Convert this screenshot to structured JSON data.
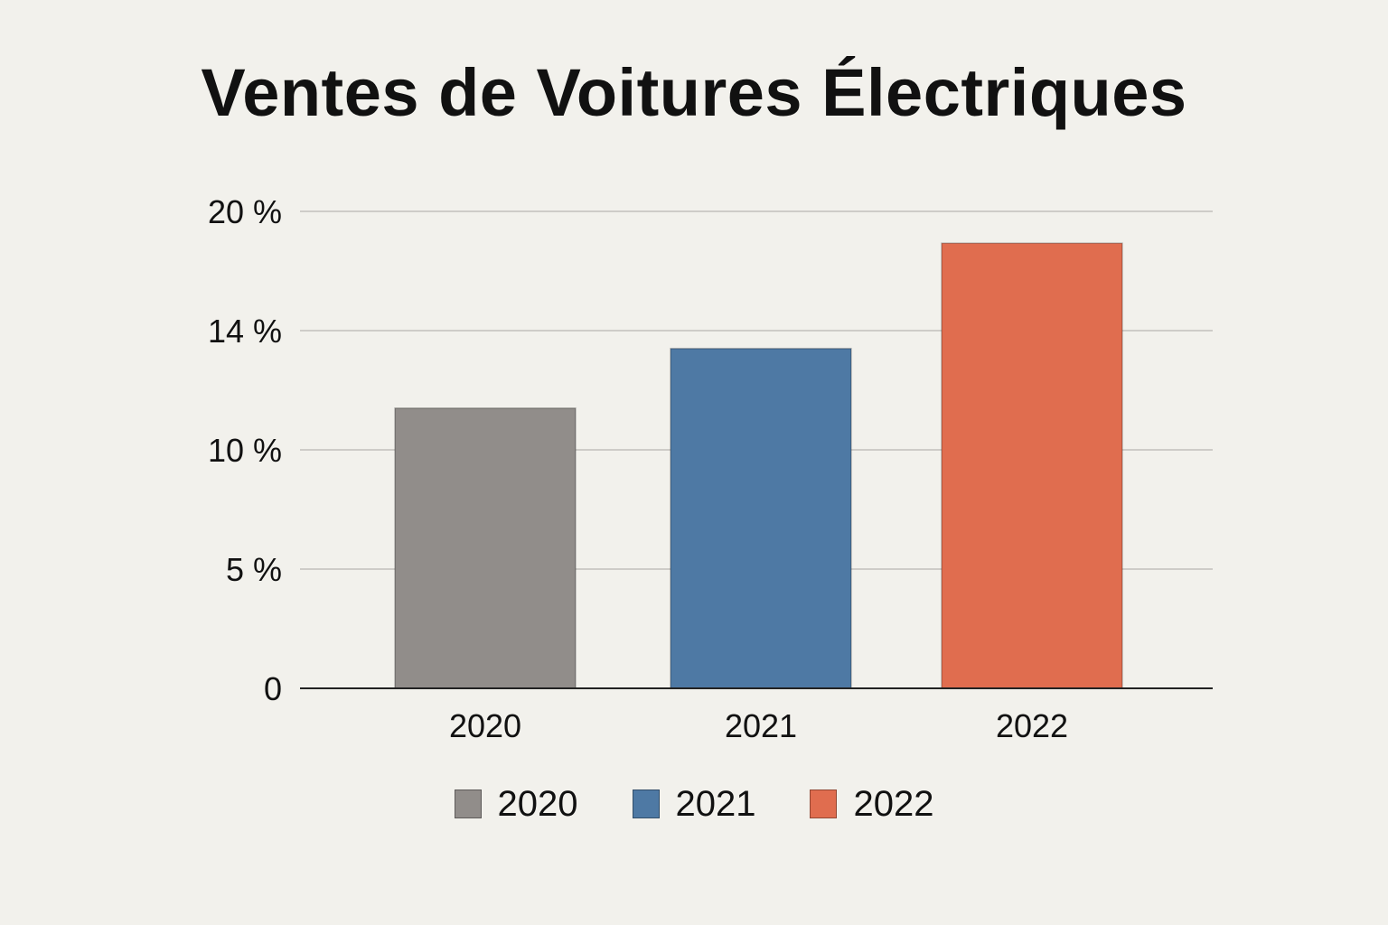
{
  "chart_data": {
    "type": "bar",
    "title": "Ventes de Voitures Électriques",
    "categories": [
      "2020",
      "2021",
      "2022"
    ],
    "values": [
      11.4,
      13.4,
      18.4
    ],
    "colors": [
      "#918d8a",
      "#4e79a4",
      "#e06d4f"
    ],
    "y_ticks": [
      {
        "value": 0,
        "label": "0"
      },
      {
        "value": 5,
        "label": "5 %"
      },
      {
        "value": 10,
        "label": "10 %"
      },
      {
        "value": 14,
        "label": "14 %"
      },
      {
        "value": 20,
        "label": "20 %"
      }
    ],
    "ylim": [
      0,
      20
    ],
    "xlabel": "",
    "ylabel": "",
    "grid": true,
    "legend": {
      "position": "bottom",
      "entries": [
        {
          "label": "2020",
          "color": "#918d8a"
        },
        {
          "label": "2021",
          "color": "#4e79a4"
        },
        {
          "label": "2022",
          "color": "#e06d4f"
        }
      ]
    }
  }
}
